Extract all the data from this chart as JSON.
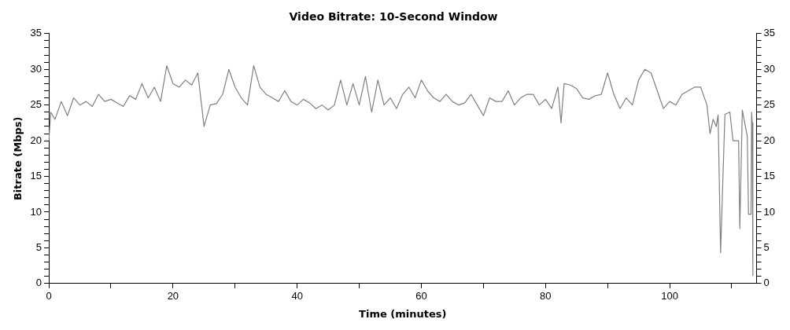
{
  "chart_data": {
    "type": "line",
    "title": "Video Bitrate: 10-Second Window",
    "xlabel": "Time (minutes)",
    "ylabel": "Bitrate (Mbps)",
    "x": [
      0,
      0.3,
      1,
      2,
      3,
      4,
      5,
      6,
      7,
      8,
      9,
      10,
      11,
      12,
      13,
      14,
      15,
      16,
      17,
      18,
      19,
      20,
      21,
      22,
      23,
      24,
      25,
      26,
      27,
      28,
      29,
      30,
      31,
      32,
      33,
      34,
      35,
      36,
      37,
      38,
      39,
      40,
      41,
      42,
      43,
      44,
      45,
      46,
      47,
      48,
      49,
      50,
      51,
      52,
      53,
      54,
      55,
      56,
      57,
      58,
      59,
      60,
      61,
      62,
      63,
      64,
      65,
      66,
      67,
      68,
      69,
      70,
      71,
      72,
      73,
      74,
      75,
      76,
      77,
      78,
      79,
      80,
      81,
      82,
      82.5,
      83,
      84,
      85,
      86,
      87,
      88,
      89,
      90,
      91,
      92,
      93,
      94,
      95,
      96,
      97,
      98,
      99,
      100,
      101,
      102,
      103,
      104,
      105,
      106,
      106.5,
      107,
      107.5,
      107.8,
      108.2,
      108.9,
      109.7,
      110.2,
      111.1,
      111.3,
      111.7,
      112.5,
      112.7,
      113.1,
      113.2,
      113.3,
      113.4
    ],
    "series": [
      {
        "color": "#808080",
        "values": [
          20,
          24,
          23,
          25.5,
          23.5,
          26,
          25,
          25.5,
          24.8,
          26.5,
          25.5,
          25.8,
          25.3,
          24.8,
          26.3,
          25.8,
          28,
          26,
          27.5,
          25.5,
          30.5,
          28,
          27.5,
          28.5,
          27.8,
          29.5,
          22,
          25,
          25.2,
          26.5,
          30,
          27.5,
          26,
          25,
          30.5,
          27.5,
          26.5,
          26,
          25.5,
          27,
          25.5,
          25,
          25.8,
          25.3,
          24.5,
          25,
          24.3,
          25,
          28.5,
          25,
          28,
          25,
          29,
          24,
          28.5,
          25,
          26,
          24.5,
          26.5,
          27.5,
          26,
          28.5,
          27,
          26,
          25.5,
          26.5,
          25.5,
          25,
          25.3,
          26.5,
          25,
          23.5,
          26,
          25.5,
          25.5,
          27,
          25,
          26,
          26.5,
          26.5,
          25,
          25.8,
          24.5,
          27.5,
          22.5,
          28,
          27.8,
          27.3,
          26,
          25.8,
          26.3,
          26.5,
          29.5,
          26.5,
          24.5,
          26,
          25,
          28.5,
          30,
          29.5,
          27,
          24.5,
          25.5,
          25,
          26.5,
          27,
          27.5,
          27.5,
          25,
          21,
          23,
          22,
          23.6,
          4.3,
          23.7,
          24,
          20,
          20,
          7.7,
          24.3,
          20.6,
          9.7,
          9.7,
          24,
          22.5,
          1.1
        ]
      }
    ],
    "xlim": [
      0,
      114
    ],
    "xticks": [
      0,
      {
        "value": 10,
        "label": null
      },
      20,
      {
        "value": 30,
        "label": null
      },
      40,
      {
        "value": 50,
        "label": null
      },
      60,
      {
        "value": 70,
        "label": null
      },
      80,
      {
        "value": 90,
        "label": null
      },
      100,
      {
        "value": 110,
        "label": null
      }
    ],
    "ylim": [
      0,
      35
    ],
    "yticks": [
      0,
      {
        "value": 1,
        "label": null
      },
      {
        "value": 2,
        "label": null
      },
      {
        "value": 3,
        "label": null
      },
      {
        "value": 4,
        "label": null
      },
      5,
      {
        "value": 6,
        "label": null
      },
      {
        "value": 7,
        "label": null
      },
      {
        "value": 8,
        "label": null
      },
      {
        "value": 9,
        "label": null
      },
      10,
      {
        "value": 11,
        "label": null
      },
      {
        "value": 12,
        "label": null
      },
      {
        "value": 13,
        "label": null
      },
      {
        "value": 14,
        "label": null
      },
      15,
      {
        "value": 16,
        "label": null
      },
      {
        "value": 17,
        "label": null
      },
      {
        "value": 18,
        "label": null
      },
      {
        "value": 19,
        "label": null
      },
      20,
      {
        "value": 21,
        "label": null
      },
      {
        "value": 22,
        "label": null
      },
      {
        "value": 23,
        "label": null
      },
      {
        "value": 24,
        "label": null
      },
      25,
      {
        "value": 26,
        "label": null
      },
      {
        "value": 27,
        "label": null
      },
      {
        "value": 28,
        "label": null
      },
      {
        "value": 29,
        "label": null
      },
      30,
      {
        "value": 31,
        "label": null
      },
      {
        "value": 32,
        "label": null
      },
      {
        "value": 33,
        "label": null
      },
      {
        "value": 34,
        "label": null
      },
      35
    ],
    "y2lim": [
      0,
      35
    ],
    "y2ticks": [
      0,
      {
        "value": 1,
        "label": null
      },
      {
        "value": 2,
        "label": null
      },
      {
        "value": 3,
        "label": null
      },
      {
        "value": 4,
        "label": null
      },
      5,
      {
        "value": 6,
        "label": null
      },
      {
        "value": 7,
        "label": null
      },
      {
        "value": 8,
        "label": null
      },
      {
        "value": 9,
        "label": null
      },
      10,
      {
        "value": 11,
        "label": null
      },
      {
        "value": 12,
        "label": null
      },
      {
        "value": 13,
        "label": null
      },
      {
        "value": 14,
        "label": null
      },
      15,
      {
        "value": 16,
        "label": null
      },
      {
        "value": 17,
        "label": null
      },
      {
        "value": 18,
        "label": null
      },
      {
        "value": 19,
        "label": null
      },
      20,
      {
        "value": 21,
        "label": null
      },
      {
        "value": 22,
        "label": null
      },
      {
        "value": 23,
        "label": null
      },
      {
        "value": 24,
        "label": null
      },
      25,
      {
        "value": 26,
        "label": null
      },
      {
        "value": 27,
        "label": null
      },
      {
        "value": 28,
        "label": null
      },
      {
        "value": 29,
        "label": null
      },
      30,
      {
        "value": 31,
        "label": null
      },
      {
        "value": 32,
        "label": null
      },
      {
        "value": 33,
        "label": null
      },
      {
        "value": 34,
        "label": null
      },
      35
    ],
    "grid": false,
    "legend": false,
    "marker": "none",
    "line_style": "solid"
  }
}
